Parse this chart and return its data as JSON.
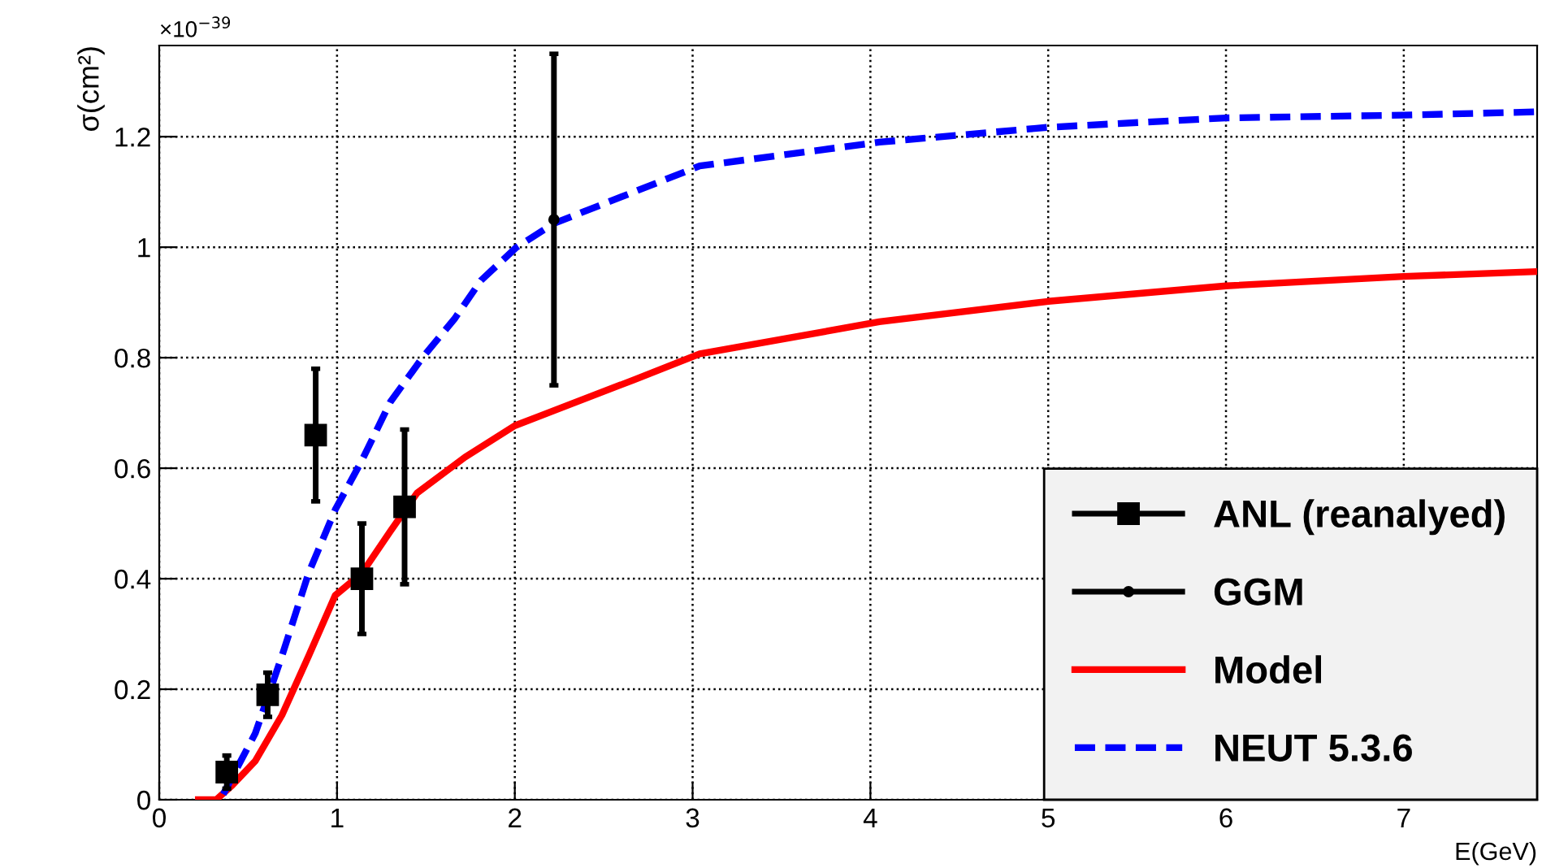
{
  "chart_data": {
    "type": "line",
    "xlabel": "E(GeV)",
    "ylabel": "σ(cm²)",
    "annotations": [
      "×10$^{−39}$"
    ],
    "xlim": [
      0,
      7.75
    ],
    "ylim": [
      0,
      1.365
    ],
    "xticks": [
      0,
      1,
      2,
      3,
      4,
      5,
      6,
      7
    ],
    "yticks": [
      0,
      0.2,
      0.4,
      0.6,
      0.8,
      1,
      1.2
    ],
    "grid": true,
    "legend": "bottom right",
    "series": [
      {
        "name": "ANL (reanalyed)",
        "type": "scatter",
        "marker": "square",
        "color": "#000000",
        "x": [
          0.38,
          0.61,
          0.88,
          1.14,
          1.38
        ],
        "values": [
          0.05,
          0.19,
          0.66,
          0.4,
          0.53
        ],
        "errors": [
          0.03,
          0.04,
          0.12,
          0.1,
          0.14
        ]
      },
      {
        "name": "GGM",
        "type": "scatter",
        "marker": "circle",
        "color": "#000000",
        "x": [
          2.22
        ],
        "values": [
          1.05
        ],
        "errors": [
          0.3
        ]
      },
      {
        "name": "Model",
        "line_style": "solid",
        "color": "#ff0000",
        "x": [
          0.22,
          0.32,
          0.41,
          0.54,
          0.69,
          0.84,
          0.99,
          1.14,
          1.3,
          1.45,
          1.72,
          2.0,
          2.67,
          3.04,
          4.05,
          5.0,
          6.0,
          7.0,
          7.75
        ],
        "values": [
          0,
          0,
          0.026,
          0.07,
          0.153,
          0.26,
          0.37,
          0.41,
          0.486,
          0.555,
          0.62,
          0.677,
          0.76,
          0.807,
          0.865,
          0.902,
          0.93,
          0.947,
          0.956
        ]
      },
      {
        "name": "NEUT 5.3.6",
        "line_style": "dashed",
        "color": "#0000ff",
        "x": [
          0.36,
          0.54,
          0.69,
          0.84,
          0.99,
          1.14,
          1.3,
          1.48,
          1.66,
          1.81,
          2.01,
          2.22,
          3.04,
          4.05,
          5.0,
          6.0,
          7.0,
          7.75
        ],
        "values": [
          0.01,
          0.12,
          0.26,
          0.41,
          0.525,
          0.614,
          0.72,
          0.8,
          0.87,
          0.94,
          1.0,
          1.043,
          1.147,
          1.19,
          1.217,
          1.234,
          1.239,
          1.245
        ]
      }
    ]
  }
}
